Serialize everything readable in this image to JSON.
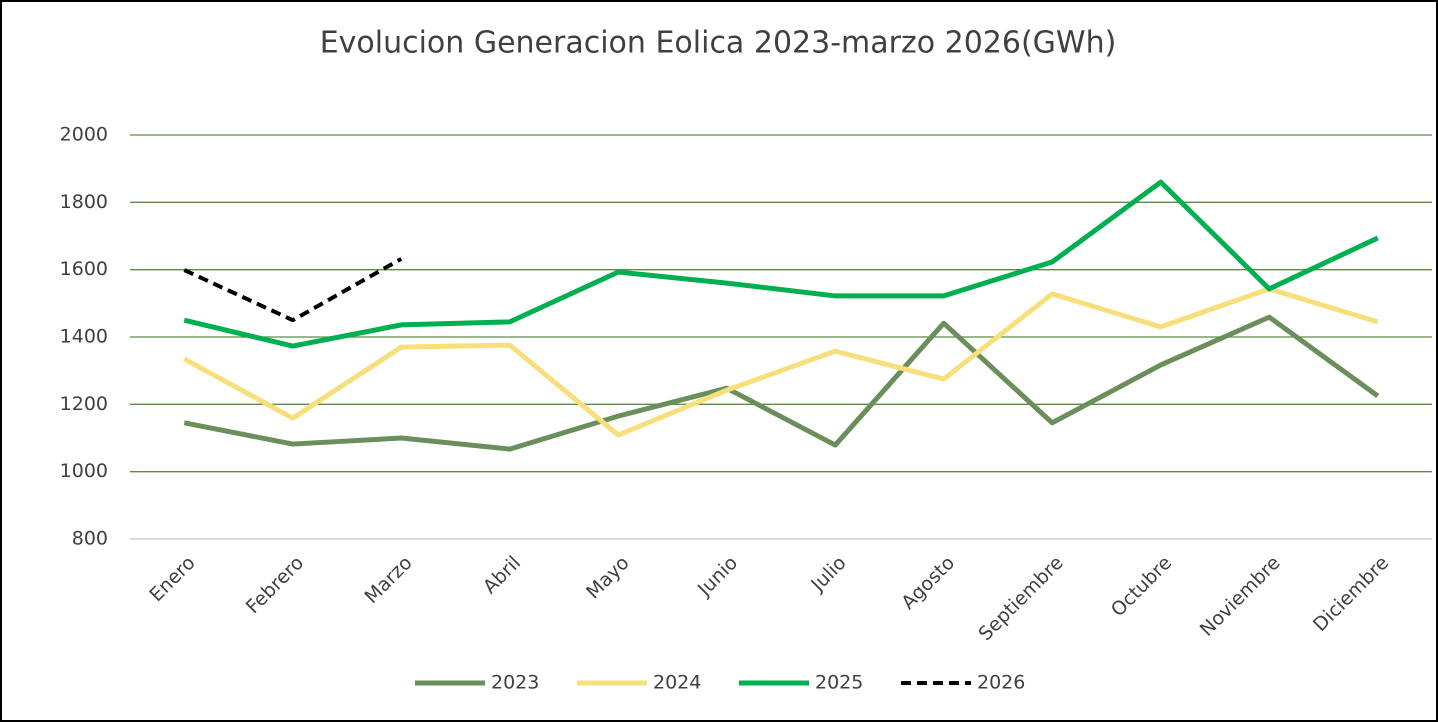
{
  "chart_data": {
    "type": "line",
    "title": "Evolucion Generacion Eolica 2023-marzo 2026(GWh)",
    "categories": [
      "Enero",
      "Febrero",
      "Marzo",
      "Abril",
      "Mayo",
      "Junio",
      "Julio",
      "Agosto",
      "Septiembre",
      "Octubre",
      "Noviembre",
      "Diciembre"
    ],
    "series": [
      {
        "name": "2023",
        "color": "#6b8f5b",
        "values": [
          1145,
          1082,
          1100,
          1067,
          1165,
          1248,
          1079,
          1441,
          1145,
          1317,
          1459,
          1225
        ]
      },
      {
        "name": "2024",
        "color": "#f7e07c",
        "values": [
          1335,
          1159,
          1370,
          1376,
          1109,
          1242,
          1358,
          1275,
          1528,
          1430,
          1543,
          1445
        ]
      },
      {
        "name": "2025",
        "color": "#00b050",
        "values": [
          1450,
          1373,
          1436,
          1445,
          1593,
          1560,
          1522,
          1522,
          1623,
          1860,
          1543,
          1694
        ]
      },
      {
        "name": "2026",
        "color": "#000000",
        "style": "dashed",
        "values": [
          1599,
          1450,
          1632,
          null,
          null,
          null,
          null,
          null,
          null,
          null,
          null,
          null
        ]
      }
    ],
    "ylim": [
      800,
      2000
    ],
    "yticks": [
      800,
      1000,
      1200,
      1400,
      1600,
      1800,
      2000
    ],
    "grid": true,
    "legend": "bottom"
  }
}
